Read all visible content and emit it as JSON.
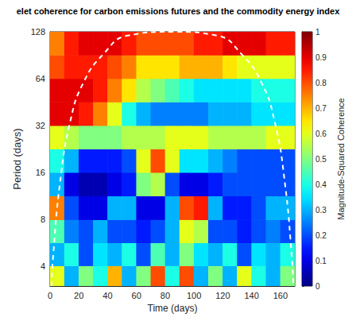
{
  "chart_data": {
    "type": "heatmap",
    "title": "elet coherence for carbon emissions futures and the commodity energy index",
    "x_label": "Time (days)",
    "y_label": "Period (days)",
    "colorbar_label": "Magnitude-Squared Coherence",
    "log": "y",
    "grid": false,
    "xlim": [
      0,
      170
    ],
    "xticks": [
      0,
      20,
      40,
      60,
      80,
      100,
      120,
      140,
      160
    ],
    "ylim": [
      3,
      128
    ],
    "yticks": [
      4,
      8,
      16,
      32,
      64,
      128
    ],
    "clim": [
      0,
      1
    ],
    "cticks": [
      0,
      0.1,
      0.2,
      0.3,
      0.4,
      0.5,
      0.6,
      0.7,
      0.8,
      0.9,
      1
    ],
    "x": [
      5,
      15,
      25,
      35,
      45,
      55,
      65,
      75,
      85,
      95,
      105,
      115,
      125,
      135,
      145,
      155,
      165
    ],
    "y": [
      3.4,
      4.8,
      6.7,
      9.5,
      13.5,
      19,
      27,
      38,
      54,
      76,
      108
    ],
    "z": [
      [
        0.6,
        0.3,
        0.5,
        0.4,
        0.7,
        0.3,
        0.5,
        0.8,
        0.4,
        0.8,
        0.3,
        0.5,
        0.3,
        0.6,
        0.4,
        0.3,
        0.5
      ],
      [
        0.3,
        0.4,
        0.2,
        0.35,
        0.3,
        0.4,
        0.2,
        0.45,
        0.3,
        0.5,
        0.35,
        0.3,
        0.4,
        0.2,
        0.35,
        0.3,
        0.4
      ],
      [
        0.45,
        0.25,
        0.2,
        0.3,
        0.2,
        0.2,
        0.15,
        0.2,
        0.3,
        0.6,
        0.55,
        0.2,
        0.2,
        0.15,
        0.2,
        0.25,
        0.2
      ],
      [
        0.75,
        0.2,
        0.1,
        0.1,
        0.3,
        0.3,
        0.1,
        0.1,
        0.3,
        0.8,
        0.85,
        0.3,
        0.15,
        0.15,
        0.2,
        0.3,
        0.3
      ],
      [
        0.3,
        0.1,
        0.05,
        0.05,
        0.1,
        0.15,
        0.5,
        0.55,
        0.2,
        0.1,
        0.1,
        0.15,
        0.2,
        0.2,
        0.2,
        0.2,
        0.2
      ],
      [
        0.4,
        0.3,
        0.15,
        0.15,
        0.15,
        0.2,
        0.6,
        0.8,
        0.6,
        0.35,
        0.35,
        0.3,
        0.25,
        0.2,
        0.2,
        0.2,
        0.2
      ],
      [
        0.6,
        0.55,
        0.5,
        0.5,
        0.5,
        0.55,
        0.55,
        0.55,
        0.6,
        0.6,
        0.6,
        0.55,
        0.55,
        0.55,
        0.55,
        0.6,
        0.6
      ],
      [
        0.9,
        0.9,
        0.85,
        0.75,
        0.6,
        0.4,
        0.3,
        0.25,
        0.25,
        0.25,
        0.25,
        0.3,
        0.3,
        0.3,
        0.35,
        0.35,
        0.35
      ],
      [
        0.9,
        0.9,
        0.9,
        0.85,
        0.75,
        0.65,
        0.55,
        0.5,
        0.45,
        0.4,
        0.35,
        0.35,
        0.35,
        0.35,
        0.4,
        0.4,
        0.4
      ],
      [
        0.8,
        0.85,
        0.85,
        0.85,
        0.8,
        0.75,
        0.65,
        0.65,
        0.65,
        0.7,
        0.7,
        0.7,
        0.65,
        0.6,
        0.6,
        0.6,
        0.6
      ],
      [
        0.75,
        0.85,
        0.9,
        0.9,
        0.9,
        0.85,
        0.8,
        0.8,
        0.8,
        0.8,
        0.85,
        0.85,
        0.9,
        0.9,
        0.9,
        0.85,
        0.85
      ]
    ],
    "cone_of_influence": {
      "x": [
        1,
        2,
        7,
        14,
        23,
        37,
        54,
        85,
        116,
        133,
        147,
        156,
        163,
        168,
        169
      ],
      "period": [
        3,
        4.5,
        14,
        34,
        60,
        92,
        121,
        128,
        121,
        92,
        60,
        34,
        14,
        4.5,
        3
      ],
      "color": "#ffffff",
      "line_style": "dashed"
    }
  }
}
